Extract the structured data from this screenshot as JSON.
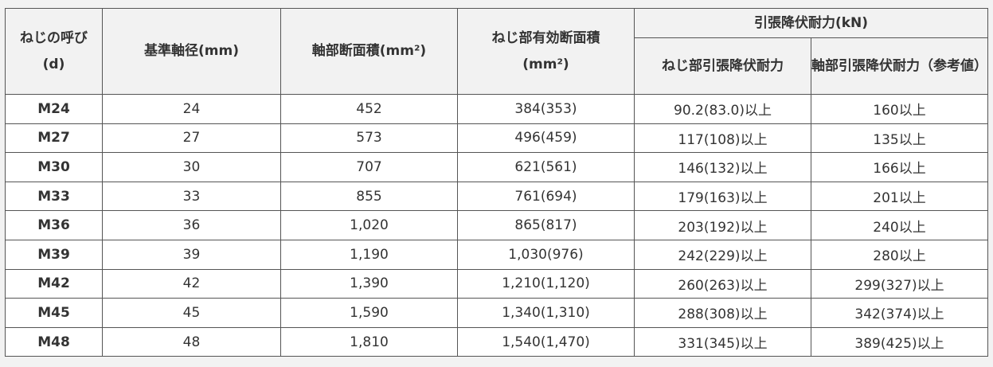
{
  "table": {
    "header": {
      "nominal": "ねじの呼び(d)",
      "diameter": "基準軸径(mm)",
      "shaft_area": "軸部断面積(mm²)",
      "thread_area": "ねじ部有効断面積(mm²)",
      "yield_group": "引張降伏耐力(kN)",
      "yield_thread": "ねじ部引張降伏耐力",
      "yield_shaft": "軸部引張降伏耐力（参考値）"
    },
    "rows": [
      [
        "M24",
        "24",
        "452",
        "384(353)",
        "90.2(83.0)以上",
        "160以上"
      ],
      [
        "M27",
        "27",
        "573",
        "496(459)",
        "117(108)以上",
        "135以上"
      ],
      [
        "M30",
        "30",
        "707",
        "621(561)",
        "146(132)以上",
        "166以上"
      ],
      [
        "M33",
        "33",
        "855",
        "761(694)",
        "179(163)以上",
        "201以上"
      ],
      [
        "M36",
        "36",
        "1,020",
        "865(817)",
        "203(192)以上",
        "240以上"
      ],
      [
        "M39",
        "39",
        "1,190",
        "1,030(976)",
        "242(229)以上",
        "280以上"
      ],
      [
        "M42",
        "42",
        "1,390",
        "1,210(1,120)",
        "260(263)以上",
        "299(327)以上"
      ],
      [
        "M45",
        "45",
        "1,590",
        "1,340(1,310)",
        "288(308)以上",
        "342(374)以上"
      ],
      [
        "M48",
        "48",
        "1,810",
        "1,540(1,470)",
        "331(345)以上",
        "389(425)以上"
      ]
    ]
  }
}
